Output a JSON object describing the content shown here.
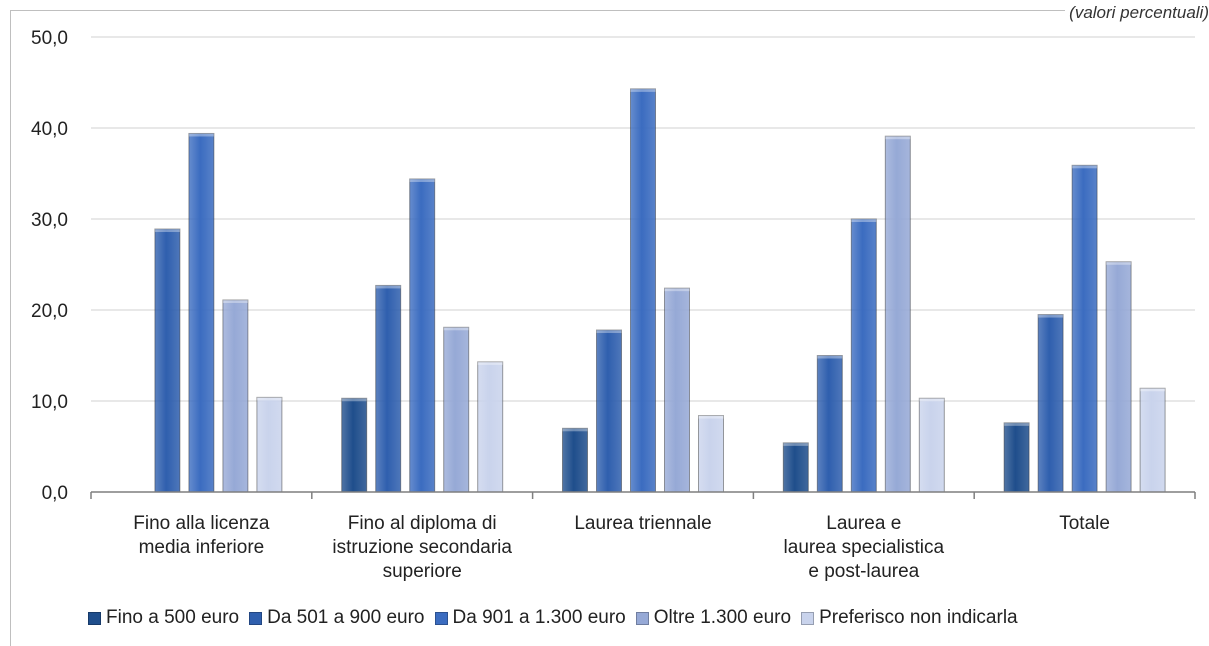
{
  "note": "(valori percentuali)",
  "chart_data": {
    "type": "bar",
    "categories": [
      [
        "Fino alla licenza",
        "media inferiore"
      ],
      [
        "Fino al diploma di",
        "istruzione secondaria",
        "superiore"
      ],
      [
        "Laurea triennale"
      ],
      [
        "Laurea e",
        "laurea specialistica",
        "e post-laurea"
      ],
      [
        "Totale"
      ]
    ],
    "series": [
      {
        "name": "Fino a 500 euro",
        "color": "#1f4e8c",
        "values": [
          0.0,
          10.3,
          7.0,
          5.4,
          7.6
        ]
      },
      {
        "name": "Da 501 a 900 euro",
        "color": "#2f5fae",
        "values": [
          28.9,
          22.7,
          17.8,
          15.0,
          19.5
        ]
      },
      {
        "name": "Da 901 a 1.300 euro",
        "color": "#3b6cc0",
        "values": [
          39.4,
          34.4,
          44.3,
          30.0,
          35.9
        ]
      },
      {
        "name": "Oltre 1.300 euro",
        "color": "#96a9d6",
        "values": [
          21.1,
          18.1,
          22.4,
          39.1,
          25.3
        ]
      },
      {
        "name": "Preferisco non indicarla",
        "color": "#c9d3ec",
        "values": [
          10.4,
          14.3,
          8.4,
          10.3,
          11.4
        ]
      }
    ],
    "yticks": [
      "0,0",
      "10,0",
      "20,0",
      "30,0",
      "40,0",
      "50,0"
    ],
    "ylim": [
      0,
      50
    ],
    "grid": true,
    "legend_position": "bottom"
  }
}
